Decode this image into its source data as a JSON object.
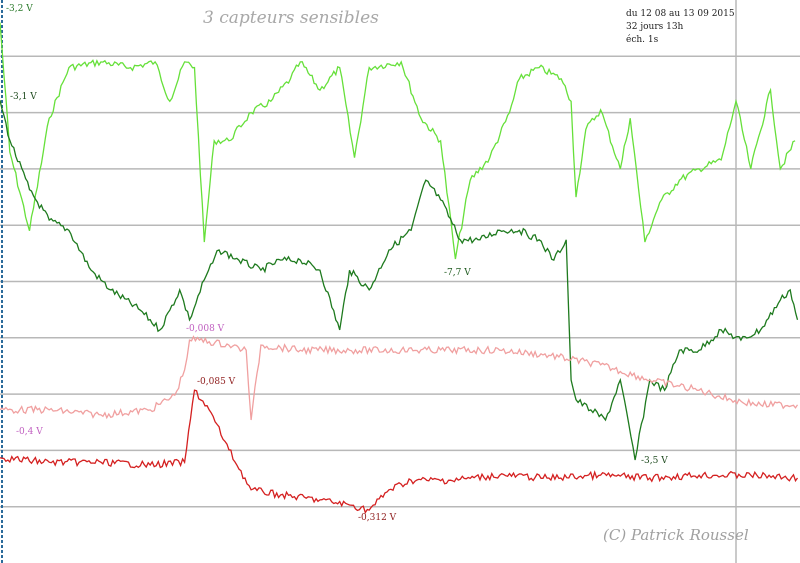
{
  "chart_data": {
    "type": "line",
    "title": "3 capteurs sensibles",
    "info_lines": [
      "du 12 08 au 13 09 2015",
      "32 jours 13h",
      "éch. 1s"
    ],
    "copyright": "(C) Patrick Roussel",
    "xlabel": "",
    "ylabel": "",
    "xlim": [
      0,
      32.5
    ],
    "ylim": [
      0,
      10
    ],
    "grid": true,
    "series": [
      {
        "name": "light-green",
        "color": "#66e03a",
        "x": [
          0,
          0.4,
          1.2,
          2,
          2.8,
          4.1,
          5.3,
          6.3,
          6.9,
          7.5,
          7.9,
          8.3,
          8.7,
          9.3,
          10.2,
          11,
          11.8,
          12.2,
          13,
          13.8,
          14.4,
          15,
          16.3,
          17.1,
          17.9,
          18.5,
          19.1,
          19.9,
          20.7,
          21.1,
          21.9,
          22.8,
          23.2,
          23.4,
          23.8,
          24.4,
          25.2,
          25.6,
          26.2,
          26.8,
          27.6,
          28.4,
          29.3,
          29.9,
          30.5,
          31.3,
          31.7,
          32.3
        ],
        "y": [
          9.6,
          7.3,
          5.9,
          7.9,
          8.8,
          8.9,
          8.8,
          8.9,
          8.2,
          8.9,
          8.8,
          5.7,
          7.5,
          7.5,
          8.0,
          8.2,
          8.6,
          8.9,
          8.4,
          8.8,
          7.2,
          8.8,
          8.9,
          7.9,
          7.5,
          5.4,
          6.8,
          7.2,
          8.0,
          8.6,
          8.8,
          8.6,
          8.2,
          6.5,
          7.7,
          8.05,
          7.0,
          7.9,
          5.7,
          6.4,
          6.8,
          7.0,
          7.16,
          8.2,
          7.0,
          8.4,
          7.0,
          7.5
        ]
      },
      {
        "name": "dark-green",
        "color": "#1e7a1e",
        "x": [
          0,
          0.4,
          1.2,
          2,
          2.8,
          3.7,
          4.5,
          5.7,
          6.5,
          6.9,
          7.3,
          7.7,
          8.3,
          8.9,
          9.7,
          10.6,
          11.4,
          12.2,
          13,
          13.8,
          14.2,
          15,
          15.8,
          16.7,
          17.3,
          17.9,
          18.7,
          19.5,
          20.3,
          21.1,
          21.9,
          22.5,
          23,
          23.2,
          23.4,
          24,
          24.6,
          25.2,
          25.8,
          26.4,
          27,
          27.6,
          28.4,
          29.3,
          30.1,
          30.9,
          31.7,
          32.1,
          32.4
        ],
        "y": [
          8.22,
          7.51,
          6.63,
          6.09,
          5.91,
          5.2,
          4.85,
          4.49,
          4.14,
          4.49,
          4.85,
          4.32,
          5.03,
          5.56,
          5.38,
          5.2,
          5.38,
          5.38,
          5.2,
          4.14,
          5.2,
          4.85,
          5.56,
          5.91,
          6.8,
          6.45,
          5.74,
          5.74,
          5.91,
          5.91,
          5.74,
          5.38,
          5.74,
          3.25,
          2.9,
          2.72,
          2.54,
          3.25,
          1.83,
          3.25,
          3.07,
          3.78,
          3.78,
          4.14,
          3.96,
          4.14,
          4.67,
          4.85,
          4.32
        ]
      },
      {
        "name": "pink",
        "color": "#f0a0a0",
        "x": [
          0,
          0.8,
          2,
          4.1,
          6.1,
          7.1,
          7.5,
          7.7,
          8.1,
          9.3,
          10,
          10.2,
          10.6,
          12.2,
          14.2,
          16.3,
          18.3,
          20.3,
          22.3,
          24.4,
          26.4,
          28.4,
          29.7,
          30.9,
          32.4
        ],
        "y": [
          2.72,
          2.72,
          2.72,
          2.63,
          2.72,
          2.98,
          3.43,
          3.96,
          3.96,
          3.87,
          3.78,
          2.54,
          3.87,
          3.78,
          3.78,
          3.78,
          3.78,
          3.78,
          3.69,
          3.52,
          3.25,
          3.07,
          2.9,
          2.81,
          2.81
        ]
      },
      {
        "name": "red",
        "color": "#d42020",
        "x": [
          0,
          2,
          4.1,
          6.1,
          7.5,
          7.9,
          8.5,
          9.3,
          10.2,
          11.4,
          13,
          14.2,
          15,
          15.8,
          16.7,
          18.3,
          20.3,
          22.3,
          24.4,
          26.4,
          28.4,
          30.5,
          32.4
        ],
        "y": [
          1.87,
          1.79,
          1.79,
          1.74,
          1.79,
          3.07,
          2.72,
          2.01,
          1.3,
          1.21,
          1.12,
          1.03,
          0.94,
          1.3,
          1.47,
          1.47,
          1.56,
          1.51,
          1.56,
          1.51,
          1.56,
          1.56,
          1.51
        ]
      }
    ],
    "annotations": [
      {
        "text": "-3,2 V",
        "series": "light-green",
        "color": "#2a7a2a"
      },
      {
        "text": "-3,1 V",
        "series": "dark-green",
        "color": "#1e4a1e"
      },
      {
        "text": "-7,7 V",
        "series": "dark-green",
        "color": "#1e5a1e"
      },
      {
        "text": "-3,5 V",
        "series": "dark-green",
        "color": "#1e4a1e"
      },
      {
        "text": "-0,008 V",
        "series": "pink",
        "color": "#c060c0"
      },
      {
        "text": "-0,4 V",
        "series": "pink",
        "color": "#c060c0"
      },
      {
        "text": "-0,085 V",
        "series": "red",
        "color": "#902020"
      },
      {
        "text": "-0,312 V",
        "series": "red",
        "color": "#902020"
      }
    ]
  }
}
